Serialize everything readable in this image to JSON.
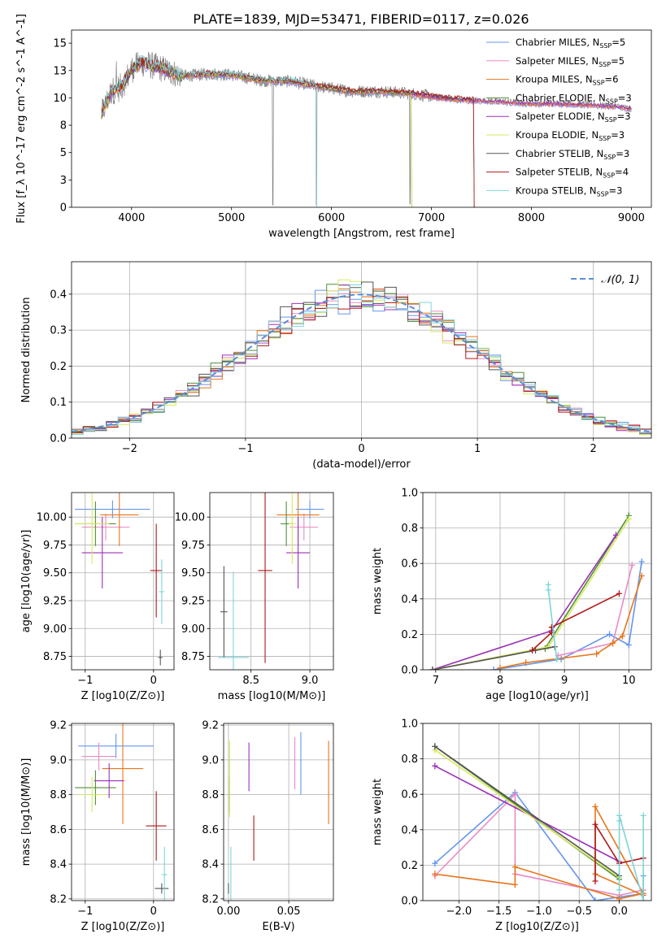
{
  "figure_title": "PLATE=1839, MJD=53471, FIBERID=0117, z=0.026",
  "palette": {
    "Chabrier MILES": "#6495ed",
    "Salpeter MILES": "#e88bc4",
    "Kroupa MILES": "#e6761c",
    "Chabrier ELODIE": "#4f8f3a",
    "Salpeter ELODIE": "#9b30b8",
    "Kroupa ELODIE": "#d9e85e",
    "Chabrier STELIB": "#555555",
    "Salpeter STELIB": "#b01818",
    "Kroupa STELIB": "#7fd4d8",
    "normal_curve": "#5b8fd6",
    "spectrum_data": "#808080"
  },
  "chart_data": [
    {
      "id": "spectrum",
      "type": "line",
      "xlabel": "wavelength [Angstrom, rest frame]",
      "ylabel": "Flux [f_λ 10^-17 erg cm^-2 s^-1 A^-1]",
      "xlim": [
        3400,
        9200
      ],
      "ylim": [
        0,
        16.2
      ],
      "xticks": [
        4000,
        5000,
        6000,
        7000,
        8000,
        9000
      ],
      "yticks": [
        0.0,
        2.5,
        5.0,
        7.5,
        10.0,
        12.5,
        15.0
      ],
      "grid": false,
      "legend_position": "upper-right",
      "legend": [
        {
          "name": "Chabrier MILES",
          "nssp": "5"
        },
        {
          "name": "Salpeter MILES",
          "nssp": "5"
        },
        {
          "name": "Kroupa MILES",
          "nssp": "6"
        },
        {
          "name": "Chabrier ELODIE",
          "nssp": "3"
        },
        {
          "name": "Salpeter ELODIE",
          "nssp": "3"
        },
        {
          "name": "Kroupa ELODIE",
          "nssp": "3"
        },
        {
          "name": "Chabrier STELIB",
          "nssp": "3"
        },
        {
          "name": "Salpeter STELIB",
          "nssp": "4"
        },
        {
          "name": "Kroupa STELIB",
          "nssp": "3"
        }
      ],
      "data_continuum": [
        [
          3700,
          8.5
        ],
        [
          3800,
          10.6
        ],
        [
          3900,
          11.0
        ],
        [
          4000,
          12.6
        ],
        [
          4100,
          13.2
        ],
        [
          4300,
          12.7
        ],
        [
          4500,
          12.0
        ],
        [
          4800,
          12.2
        ],
        [
          5000,
          12.1
        ],
        [
          5300,
          11.6
        ],
        [
          5600,
          11.5
        ],
        [
          5900,
          11.0
        ],
        [
          6200,
          10.6
        ],
        [
          6500,
          10.6
        ],
        [
          6800,
          10.4
        ],
        [
          7100,
          10.0
        ],
        [
          7400,
          9.8
        ],
        [
          7700,
          9.7
        ],
        [
          8000,
          9.5
        ],
        [
          8300,
          9.5
        ],
        [
          8600,
          9.4
        ],
        [
          8900,
          9.2
        ],
        [
          9000,
          9.0
        ]
      ],
      "model_range": [
        3700,
        9000
      ],
      "model_cutoffs": {
        "Salpeter STELIB": 7420,
        "Chabrier STELIB": 7420,
        "Kroupa STELIB": 5850,
        "Kroupa ELODIE": 6800,
        "Chabrier ELODIE": 6800
      }
    },
    {
      "id": "residual-histogram",
      "type": "step",
      "xlabel": "(data-model)/error",
      "ylabel": "Normed distribution",
      "xlim": [
        -2.5,
        2.5
      ],
      "ylim": [
        0,
        0.49
      ],
      "xticks": [
        -2,
        -1,
        0,
        1,
        2
      ],
      "yticks": [
        0.0,
        0.1,
        0.2,
        0.3,
        0.4
      ],
      "grid": true,
      "legend_position": "upper-right",
      "legend": [
        {
          "name": "𝒩(0, 1)"
        }
      ],
      "bins": 50,
      "normal": {
        "mu": 0,
        "sigma": 1
      }
    },
    {
      "id": "age-vs-Z",
      "type": "errorbar",
      "xlabel": "Z [log10(Z/Z⊙)]",
      "ylabel": "age  [log10(age/yr)]",
      "xlim": [
        -1.2,
        0.3
      ],
      "ylim": [
        8.63,
        10.22
      ],
      "xticks": [
        -1,
        0
      ],
      "yticks": [
        8.75,
        9.0,
        9.25,
        9.5,
        9.75,
        10.0
      ],
      "grid": true,
      "points": [
        {
          "model": "Chabrier MILES",
          "x": -0.6,
          "xerr": 0.55,
          "y": 10.07,
          "yerr": 0.08
        },
        {
          "model": "Salpeter MILES",
          "x": -0.7,
          "xerr": 0.35,
          "y": 9.91,
          "yerr": 0.12
        },
        {
          "model": "Kroupa MILES",
          "x": -0.5,
          "xerr": 0.28,
          "y": 10.02,
          "yerr": 0.28
        },
        {
          "model": "Chabrier ELODIE",
          "x": -0.85,
          "xerr": 0.3,
          "y": 9.94,
          "yerr": 0.2
        },
        {
          "model": "Salpeter ELODIE",
          "x": -0.75,
          "xerr": 0.3,
          "y": 9.68,
          "yerr": 0.32
        },
        {
          "model": "Kroupa ELODIE",
          "x": -0.9,
          "xerr": 0.25,
          "y": 9.94,
          "yerr": 0.36
        },
        {
          "model": "Chabrier STELIB",
          "x": 0.1,
          "xerr": 0.03,
          "y": 8.74,
          "yerr": 0.07
        },
        {
          "model": "Salpeter STELIB",
          "x": 0.04,
          "xerr": 0.09,
          "y": 9.52,
          "yerr": 0.42
        },
        {
          "model": "Kroupa STELIB",
          "x": 0.12,
          "xerr": 0.04,
          "y": 9.33,
          "yerr": 0.29
        }
      ]
    },
    {
      "id": "age-vs-mass",
      "type": "errorbar",
      "xlabel": "mass [log10(M/M⊙)]",
      "ylabel": "",
      "xlim": [
        8.15,
        9.2
      ],
      "ylim": [
        8.63,
        10.22
      ],
      "xticks": [
        8.5,
        9.0
      ],
      "yticks": [
        8.75,
        9.0,
        9.25,
        9.5,
        9.75,
        10.0
      ],
      "grid": true,
      "points": [
        {
          "model": "Chabrier MILES",
          "x": 9.0,
          "xerr": 0.12,
          "y": 10.07,
          "yerr": 0.08
        },
        {
          "model": "Salpeter MILES",
          "x": 8.95,
          "xerr": 0.12,
          "y": 9.91,
          "yerr": 0.12
        },
        {
          "model": "Kroupa MILES",
          "x": 8.9,
          "xerr": 0.18,
          "y": 10.02,
          "yerr": 0.28
        },
        {
          "model": "Chabrier ELODIE",
          "x": 8.8,
          "xerr": 0.05,
          "y": 9.94,
          "yerr": 0.2
        },
        {
          "model": "Salpeter ELODIE",
          "x": 8.9,
          "xerr": 0.1,
          "y": 9.68,
          "yerr": 0.32
        },
        {
          "model": "Kroupa ELODIE",
          "x": 8.85,
          "xerr": 0.03,
          "y": 9.94,
          "yerr": 0.36
        },
        {
          "model": "Chabrier STELIB",
          "x": 8.27,
          "xerr": 0.03,
          "y": 9.15,
          "yerr": 0.41
        },
        {
          "model": "Salpeter STELIB",
          "x": 8.62,
          "xerr": 0.06,
          "y": 9.52,
          "yerr": 0.83
        },
        {
          "model": "Kroupa STELIB",
          "x": 8.35,
          "xerr": 0.13,
          "y": 8.74,
          "yerr": 0.77
        }
      ]
    },
    {
      "id": "mass-weight-vs-age",
      "type": "line",
      "xlabel": "age  [log10(age/yr)]",
      "ylabel": "mass weight",
      "xlim": [
        6.8,
        10.35
      ],
      "ylim": [
        0,
        1.0
      ],
      "xticks": [
        7,
        8,
        9,
        10
      ],
      "yticks": [
        0.0,
        0.2,
        0.4,
        0.6,
        0.8,
        1.0
      ],
      "grid": true,
      "series": [
        {
          "model": "Chabrier MILES",
          "x": [
            7.9,
            8.95,
            9.7,
            10.0,
            10.2
          ],
          "y": [
            0.0,
            0.06,
            0.2,
            0.14,
            0.61
          ]
        },
        {
          "model": "Salpeter MILES",
          "x": [
            8.9,
            9.75,
            10.05
          ],
          "y": [
            0.08,
            0.15,
            0.59
          ]
        },
        {
          "model": "Kroupa MILES",
          "x": [
            8.0,
            8.4,
            9.5,
            9.75,
            9.9,
            10.2
          ],
          "y": [
            0.01,
            0.04,
            0.09,
            0.15,
            0.19,
            0.53
          ]
        },
        {
          "model": "Chabrier ELODIE",
          "x": [
            6.95,
            8.7,
            10.0
          ],
          "y": [
            0.0,
            0.12,
            0.87
          ]
        },
        {
          "model": "Salpeter ELODIE",
          "x": [
            6.95,
            8.8,
            9.8
          ],
          "y": [
            0.0,
            0.22,
            0.76
          ]
        },
        {
          "model": "Kroupa ELODIE",
          "x": [
            6.95,
            8.75,
            10.0
          ],
          "y": [
            0.0,
            0.13,
            0.85
          ]
        },
        {
          "model": "Chabrier STELIB",
          "x": [
            6.95,
            8.55,
            8.85
          ],
          "y": [
            0.0,
            0.11,
            0.13
          ]
        },
        {
          "model": "Salpeter STELIB",
          "x": [
            8.5,
            8.8,
            8.8,
            9.85
          ],
          "y": [
            0.11,
            0.21,
            0.24,
            0.43
          ]
        },
        {
          "model": "Kroupa STELIB",
          "x": [
            8.75,
            8.75,
            8.88
          ],
          "y": [
            0.48,
            0.45,
            0.06
          ]
        }
      ]
    },
    {
      "id": "mass-vs-Z",
      "type": "errorbar",
      "xlabel": "Z [log10(Z/Z⊙)]",
      "ylabel": "mass [log10(M/M⊙)]",
      "xlim": [
        -1.2,
        0.3
      ],
      "ylim": [
        8.19,
        9.21
      ],
      "xticks": [
        -1,
        0
      ],
      "yticks": [
        8.2,
        8.4,
        8.6,
        8.8,
        9.0,
        9.2
      ],
      "grid": true,
      "points": [
        {
          "model": "Chabrier MILES",
          "x": -0.55,
          "xerr": 0.55,
          "y": 9.08,
          "yerr": 0.07
        },
        {
          "model": "Salpeter MILES",
          "x": -0.8,
          "xerr": 0.25,
          "y": 9.02,
          "yerr": 0.08
        },
        {
          "model": "Kroupa MILES",
          "x": -0.45,
          "xerr": 0.3,
          "y": 8.95,
          "yerr": 0.32
        },
        {
          "model": "Chabrier ELODIE",
          "x": -0.85,
          "xerr": 0.3,
          "y": 8.84,
          "yerr": 0.1
        },
        {
          "model": "Salpeter ELODIE",
          "x": -0.65,
          "xerr": 0.22,
          "y": 8.88,
          "yerr": 0.1
        },
        {
          "model": "Kroupa ELODIE",
          "x": -0.9,
          "xerr": 0.2,
          "y": 8.8,
          "yerr": 0.1
        },
        {
          "model": "Chabrier STELIB",
          "x": 0.12,
          "xerr": 0.1,
          "y": 8.26,
          "yerr": 0.03
        },
        {
          "model": "Salpeter STELIB",
          "x": 0.04,
          "xerr": 0.15,
          "y": 8.62,
          "yerr": 0.2
        },
        {
          "model": "Kroupa STELIB",
          "x": 0.16,
          "xerr": 0.04,
          "y": 8.34,
          "yerr": 0.16
        }
      ]
    },
    {
      "id": "mass-vs-EBV",
      "type": "errorbar",
      "xlabel": "E(B-V)",
      "ylabel": "",
      "xlim": [
        -0.004,
        0.087
      ],
      "ylim": [
        8.19,
        9.21
      ],
      "xticks": [
        0.0,
        0.05
      ],
      "yticks": [
        8.2,
        8.4,
        8.6,
        8.8,
        9.0,
        9.2
      ],
      "grid": true,
      "points": [
        {
          "model": "Chabrier MILES",
          "x": 0.06,
          "y": 8.98,
          "yerr": 0.18
        },
        {
          "model": "Salpeter MILES",
          "x": 0.055,
          "y": 8.98,
          "yerr": 0.15
        },
        {
          "model": "Kroupa MILES",
          "x": 0.083,
          "y": 8.87,
          "yerr": 0.24
        },
        {
          "model": "Chabrier ELODIE",
          "x": 0.001,
          "y": 8.8,
          "yerr": 0.1
        },
        {
          "model": "Salpeter ELODIE",
          "x": 0.017,
          "y": 8.96,
          "yerr": 0.14
        },
        {
          "model": "Kroupa ELODIE",
          "x": 0.001,
          "y": 8.89,
          "yerr": 0.22
        },
        {
          "model": "Chabrier STELIB",
          "x": 0.0,
          "y": 8.26,
          "yerr": 0.03
        },
        {
          "model": "Salpeter STELIB",
          "x": 0.021,
          "y": 8.55,
          "yerr": 0.13
        },
        {
          "model": "Kroupa STELIB",
          "x": 0.002,
          "y": 8.34,
          "yerr": 0.16
        }
      ]
    },
    {
      "id": "mass-weight-vs-Z",
      "type": "line",
      "xlabel": "Z [log10(Z/Z⊙)]",
      "ylabel": "mass weight",
      "xlim": [
        -2.45,
        0.4
      ],
      "ylim": [
        0,
        1.0
      ],
      "xticks": [
        -2.0,
        -1.5,
        -1.0,
        -0.5,
        0.0
      ],
      "yticks": [
        0.0,
        0.2,
        0.4,
        0.6,
        0.8,
        1.0
      ],
      "grid": true,
      "series": [
        {
          "model": "Chabrier MILES",
          "x": [
            -2.3,
            -1.3,
            -0.3,
            0.0,
            0.3,
            0.3
          ],
          "y": [
            0.21,
            0.61,
            0.0,
            0.02,
            0.04,
            0.14
          ]
        },
        {
          "model": "Salpeter MILES",
          "x": [
            -2.3,
            -1.3,
            -1.3,
            0.0,
            0.3
          ],
          "y": [
            0.14,
            0.6,
            0.15,
            0.03,
            0.06
          ]
        },
        {
          "model": "Kroupa MILES",
          "x": [
            -2.3,
            -1.3,
            -1.3,
            0.0,
            0.3,
            -0.3,
            -0.3,
            0.3
          ],
          "y": [
            0.15,
            0.09,
            0.19,
            0.01,
            0.04,
            0.53,
            0.15,
            0.03
          ]
        },
        {
          "model": "Chabrier ELODIE",
          "x": [
            -2.3,
            0.0
          ],
          "y": [
            0.87,
            0.12
          ]
        },
        {
          "model": "Salpeter ELODIE",
          "x": [
            -2.3,
            0.0
          ],
          "y": [
            0.76,
            0.22
          ]
        },
        {
          "model": "Kroupa ELODIE",
          "x": [
            -2.3,
            0.0
          ],
          "y": [
            0.85,
            0.13
          ]
        },
        {
          "model": "Chabrier STELIB",
          "x": [
            -2.3,
            0.0
          ],
          "y": [
            0.87,
            0.14
          ]
        },
        {
          "model": "Salpeter STELIB",
          "x": [
            -0.3,
            -0.3,
            0.0,
            0.3
          ],
          "y": [
            0.11,
            0.43,
            0.21,
            0.24
          ]
        },
        {
          "model": "Kroupa STELIB",
          "x": [
            0.0,
            0.0,
            0.0,
            0.3,
            0.3
          ],
          "y": [
            0.06,
            0.45,
            0.48,
            0.0,
            0.48
          ]
        }
      ]
    }
  ]
}
